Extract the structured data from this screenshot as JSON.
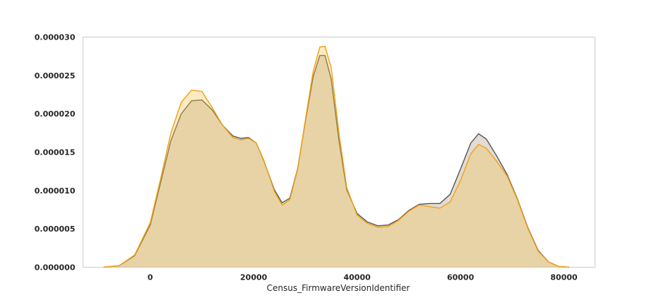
{
  "chart_data": {
    "type": "area",
    "title": "",
    "xlabel": "Census_FirmwareVersionIdentifier",
    "ylabel": "",
    "xlim": [
      -13000,
      86000
    ],
    "ylim": [
      0,
      3e-05
    ],
    "grid": false,
    "x_ticks": [
      0,
      20000,
      40000,
      60000,
      80000
    ],
    "x_tick_labels": [
      "0",
      "20000",
      "40000",
      "60000",
      "80000"
    ],
    "y_ticks": [
      0,
      5e-06,
      1e-05,
      1.5e-05,
      2e-05,
      2.5e-05,
      3e-05
    ],
    "y_tick_labels": [
      "0.000000",
      "0.000005",
      "0.000010",
      "0.000015",
      "0.000020",
      "0.000025",
      "0.000030"
    ],
    "series": [
      {
        "line_color": "#555555",
        "fill_color": "#a89c8c",
        "x": [
          -9000,
          -6000,
          -3000,
          0,
          2000,
          4000,
          6000,
          8000,
          10000,
          12000,
          14000,
          16000,
          17500,
          19000,
          20500,
          22000,
          24000,
          25500,
          27000,
          28500,
          30000,
          31500,
          32800,
          33800,
          35000,
          36500,
          38000,
          40000,
          42000,
          44000,
          46000,
          48000,
          50000,
          52000,
          54000,
          56000,
          58000,
          60000,
          62000,
          63500,
          65000,
          67000,
          69000,
          71000,
          73000,
          75000,
          77000,
          79000,
          81000
        ],
        "y": [
          0.0,
          2e-07,
          1.5e-06,
          5.5e-06,
          1.1e-05,
          1.65e-05,
          2e-05,
          2.17e-05,
          2.18e-05,
          2.05e-05,
          1.85e-05,
          1.71e-05,
          1.68e-05,
          1.69e-05,
          1.62e-05,
          1.38e-05,
          1.01e-05,
          8.4e-06,
          9e-06,
          1.28e-05,
          1.9e-05,
          2.48e-05,
          2.76e-05,
          2.76e-05,
          2.45e-05,
          1.65e-05,
          1.01e-05,
          7e-06,
          5.9e-06,
          5.4e-06,
          5.5e-06,
          6.2e-06,
          7.4e-06,
          8.2e-06,
          8.3e-06,
          8.3e-06,
          9.5e-06,
          1.28e-05,
          1.62e-05,
          1.74e-05,
          1.67e-05,
          1.45e-05,
          1.21e-05,
          8.9e-06,
          5.2e-06,
          2.2e-06,
          7e-07,
          1e-07,
          0.0
        ]
      },
      {
        "line_color": "#f2a10f",
        "fill_color": "#f5c24a",
        "x": [
          -9000,
          -6000,
          -3000,
          0,
          2000,
          4000,
          6000,
          8000,
          10000,
          12000,
          14000,
          16000,
          17500,
          19000,
          20500,
          22000,
          24000,
          25500,
          27000,
          28500,
          30000,
          31500,
          32800,
          33800,
          35000,
          36500,
          38000,
          40000,
          42000,
          44000,
          46000,
          48000,
          50000,
          52000,
          54000,
          56000,
          58000,
          60000,
          62000,
          63500,
          65000,
          67000,
          69000,
          71000,
          73000,
          75000,
          77000,
          79000,
          81000
        ],
        "y": [
          0.0,
          2e-07,
          1.6e-06,
          5.8e-06,
          1.15e-05,
          1.75e-05,
          2.15e-05,
          2.31e-05,
          2.29e-05,
          2.08e-05,
          1.85e-05,
          1.69e-05,
          1.66e-05,
          1.68e-05,
          1.62e-05,
          1.39e-05,
          9.9e-06,
          8.1e-06,
          8.8e-06,
          1.27e-05,
          1.92e-05,
          2.55e-05,
          2.87e-05,
          2.88e-05,
          2.6e-05,
          1.75e-05,
          1.04e-05,
          6.8e-06,
          5.7e-06,
          5.2e-06,
          5.3e-06,
          6.1e-06,
          7.3e-06,
          8.1e-06,
          7.9e-06,
          7.7e-06,
          8.5e-06,
          1.13e-05,
          1.48e-05,
          1.6e-05,
          1.55e-05,
          1.38e-05,
          1.19e-05,
          8.8e-06,
          5.1e-06,
          2.1e-06,
          7e-07,
          1e-07,
          0.0
        ]
      }
    ]
  }
}
